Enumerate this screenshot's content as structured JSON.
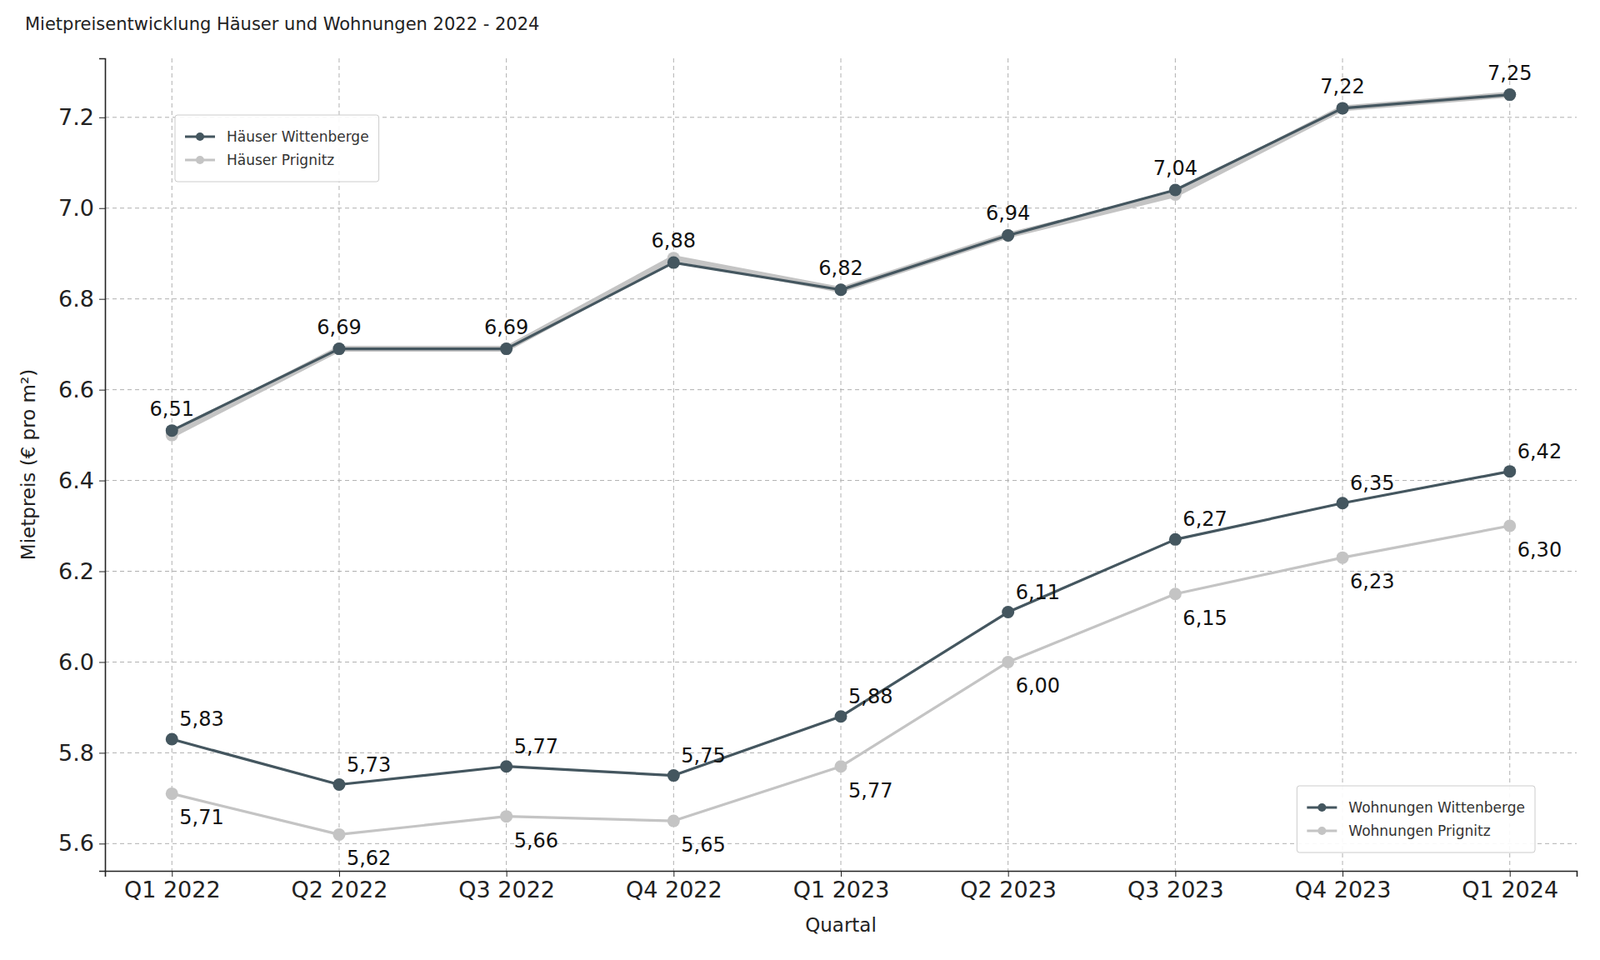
{
  "chart_data": {
    "type": "line",
    "title": "Mietpreisentwicklung Häuser und Wohnungen 2022 - 2024",
    "x_label": "Quartal",
    "y_label": "Mietpreis (€ pro m²)",
    "categories": [
      "Q1 2022",
      "Q2 2022",
      "Q3 2022",
      "Q4 2022",
      "Q1 2023",
      "Q2 2023",
      "Q3 2023",
      "Q4 2023",
      "Q1 2024"
    ],
    "ylim": [
      5.54,
      7.33
    ],
    "yticks": [
      5.6,
      5.8,
      {
        "value": 6,
        "label": "6.0"
      },
      6.2,
      6.4,
      6.6,
      6.8,
      {
        "value": 7,
        "label": "7.0"
      },
      7.2
    ],
    "grid": true,
    "series": [
      {
        "name": "Häuser Prignitz",
        "color": "#c4c4c4",
        "marker": "circle",
        "legend": "upper left",
        "data_labels": false,
        "values": [
          6.5,
          6.69,
          6.69,
          6.89,
          6.82,
          6.94,
          7.03,
          7.22,
          7.25
        ]
      },
      {
        "name": "Häuser Wittenberge",
        "color": "#44565f",
        "marker": "circle",
        "legend": "upper left",
        "data_labels": true,
        "values": [
          6.51,
          6.69,
          6.69,
          6.88,
          6.82,
          6.94,
          7.04,
          7.22,
          7.25
        ],
        "value_labels": [
          "6,51",
          "6,69",
          "6,69",
          "6,88",
          "6,82",
          "6,94",
          "7,04",
          "7,22",
          "7,25"
        ]
      },
      {
        "name": "Wohnungen Wittenberge",
        "color": "#44565f",
        "marker": "circle",
        "legend": "lower right",
        "data_labels": true,
        "values": [
          5.83,
          5.73,
          5.77,
          5.75,
          5.88,
          6.11,
          6.27,
          6.35,
          6.42
        ],
        "value_labels": [
          "5,83",
          "5,73",
          "5,77",
          "5,75",
          "5,88",
          "6,11",
          "6,27",
          "6,35",
          "6,42"
        ]
      },
      {
        "name": "Wohnungen Prignitz",
        "color": "#c4c4c4",
        "marker": "circle",
        "legend": "lower right",
        "data_labels": true,
        "values": [
          5.71,
          5.62,
          5.66,
          5.65,
          5.77,
          6.0,
          6.15,
          6.23,
          6.3
        ],
        "value_labels": [
          "5,71",
          "5,62",
          "5,66",
          "5,65",
          "5,77",
          "6,00",
          "6,15",
          "6,23",
          "6,30"
        ]
      }
    ]
  }
}
